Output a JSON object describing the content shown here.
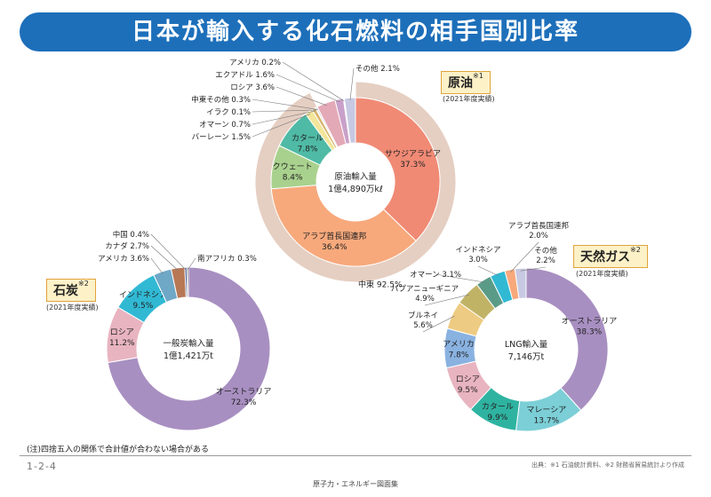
{
  "header": {
    "title": "日本が輸入する化石燃料の相手国別比率"
  },
  "note": "(注)四捨五入の関係で合計値が合わない場合がある",
  "page_number": "1-2-4",
  "source": "出典：※1 石油統計資料、※2 財務省貿易統計より作成",
  "footer": "原子力・エネルギー図面集",
  "chart_data": [
    {
      "type": "pie",
      "id": "crude",
      "title": "原油",
      "title_note": "※1",
      "subtitle": "(2021年度実績)",
      "center_label": [
        "原油輸入量",
        "1億4,890万kℓ"
      ],
      "slices": [
        {
          "label": "サウジアラビア",
          "value": 37.3,
          "color": "#f08a75"
        },
        {
          "label": "アラブ首長国連邦",
          "value": 36.4,
          "color": "#f7a97c"
        },
        {
          "label": "クウェート",
          "value": 8.4,
          "color": "#a9d18e"
        },
        {
          "label": "カタール",
          "value": 7.8,
          "color": "#4fbaa5"
        },
        {
          "label": "バーレーン",
          "value": 1.5,
          "color": "#f3e59a"
        },
        {
          "label": "オマーン",
          "value": 0.7,
          "color": "#d8b46a"
        },
        {
          "label": "イラク",
          "value": 0.1,
          "color": "#9dc8e0"
        },
        {
          "label": "中東その他",
          "value": 0.3,
          "color": "#c8c8c8"
        },
        {
          "label": "ロシア",
          "value": 3.6,
          "color": "#e3a9b7"
        },
        {
          "label": "エクアドル",
          "value": 1.6,
          "color": "#c9a0c9"
        },
        {
          "label": "アメリカ",
          "value": 0.2,
          "color": "#b9ddf0"
        },
        {
          "label": "その他",
          "value": 2.1,
          "color": "#c7c9e3"
        }
      ],
      "outer_ring": {
        "label": "中東",
        "value": 92.5,
        "color": "#e5cfc2"
      }
    },
    {
      "type": "pie",
      "id": "coal",
      "title": "石炭",
      "title_note": "※2",
      "subtitle": "(2021年度実績)",
      "center_label": [
        "一般炭輸入量",
        "1億1,421万t"
      ],
      "slices": [
        {
          "label": "オーストラリア",
          "value": 72.3,
          "color": "#a88fc1"
        },
        {
          "label": "ロシア",
          "value": 11.2,
          "color": "#e8b4c0"
        },
        {
          "label": "インドネシア",
          "value": 9.5,
          "color": "#31b9d4"
        },
        {
          "label": "アメリカ",
          "value": 3.6,
          "color": "#6fa8c7"
        },
        {
          "label": "カナダ",
          "value": 2.7,
          "color": "#b77856"
        },
        {
          "label": "中国",
          "value": 0.4,
          "color": "#3b4a8a"
        },
        {
          "label": "南アフリカ",
          "value": 0.3,
          "color": "#5a5a5a"
        }
      ]
    },
    {
      "type": "pie",
      "id": "lng",
      "title": "天然ガス",
      "title_note": "※2",
      "subtitle": "(2021年度実績)",
      "center_label": [
        "LNG輸入量",
        "7,146万t"
      ],
      "slices": [
        {
          "label": "オーストラリア",
          "value": 38.3,
          "color": "#a88fc1"
        },
        {
          "label": "マレーシア",
          "value": 13.7,
          "color": "#7ccfd7"
        },
        {
          "label": "カタール",
          "value": 9.9,
          "color": "#2fb3a1"
        },
        {
          "label": "ロシア",
          "value": 9.5,
          "color": "#e8b4c0"
        },
        {
          "label": "アメリカ",
          "value": 7.8,
          "color": "#89b2e0"
        },
        {
          "label": "ブルネイ",
          "value": 5.6,
          "color": "#eecb82"
        },
        {
          "label": "パプアニューギニア",
          "value": 4.9,
          "color": "#c1b366"
        },
        {
          "label": "オマーン",
          "value": 3.1,
          "color": "#5a9b88"
        },
        {
          "label": "インドネシア",
          "value": 3.0,
          "color": "#31b9d4"
        },
        {
          "label": "アラブ首長国連邦",
          "value": 2.0,
          "color": "#f7a97c"
        },
        {
          "label": "その他",
          "value": 2.2,
          "color": "#c7c9e3"
        }
      ]
    }
  ]
}
